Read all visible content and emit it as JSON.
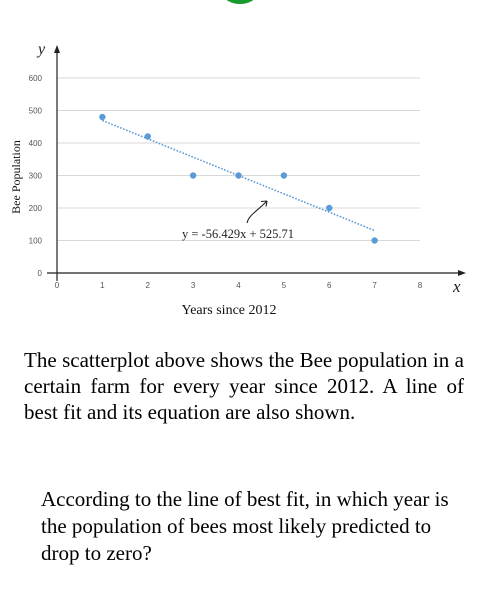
{
  "top_badge": {
    "icon": "green-circle-icon",
    "color": "#1a9a2e"
  },
  "chart_data": {
    "type": "scatter",
    "x": [
      1,
      2,
      3,
      4,
      5,
      6,
      7
    ],
    "y": [
      480,
      420,
      300,
      300,
      300,
      200,
      100
    ],
    "xlim": [
      0,
      8
    ],
    "ylim": [
      0,
      600
    ],
    "xticks": [
      0,
      1,
      2,
      3,
      4,
      5,
      6,
      7,
      8
    ],
    "yticks": [
      0,
      100,
      200,
      300,
      400,
      500,
      600
    ],
    "xlabel": "Years since 2012",
    "ylabel": "Bee Population",
    "x_axis_symbol": "x",
    "y_axis_symbol": "y",
    "trendline": {
      "slope": -56.429,
      "intercept": 525.71,
      "x_range": [
        1,
        7
      ],
      "style": "dotted"
    },
    "annotation": "y = -56.429x + 525.71",
    "grid": "horizontal",
    "point_color": "#5b9bd5",
    "line_color": "#5b9bd5"
  },
  "question": {
    "paragraph1": "The scatterplot above shows the Bee population in a certain farm for every year since 2012. A line of best fit and its equation are also shown.",
    "paragraph2": "According to the line of best fit, in which year is the population of bees most likely predicted to drop to zero?"
  }
}
